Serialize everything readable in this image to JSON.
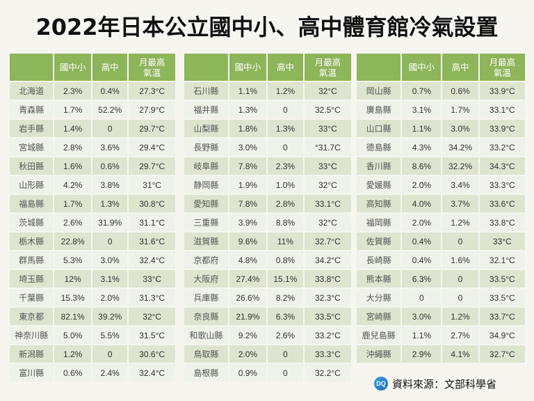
{
  "title": "2022年日本公立國中小、高中體育館冷氣設置",
  "headers": {
    "blank": "",
    "junior": "國中小",
    "high": "高中",
    "temp_line1": "月最高",
    "temp_line2": "氣溫"
  },
  "tables": [
    {
      "rows": [
        {
          "pref": "北海道",
          "junior": "2.3%",
          "high": "0.4%",
          "temp": "27.3°C"
        },
        {
          "pref": "青森縣",
          "junior": "1.7%",
          "high": "52.2%",
          "temp": "27.9°C"
        },
        {
          "pref": "岩手縣",
          "junior": "1.4%",
          "high": "0",
          "temp": "29.7°C"
        },
        {
          "pref": "宮城縣",
          "junior": "2.8%",
          "high": "3.6%",
          "temp": "29.4°C"
        },
        {
          "pref": "秋田縣",
          "junior": "1.6%",
          "high": "0.6%",
          "temp": "29.7°C"
        },
        {
          "pref": "山形縣",
          "junior": "4.2%",
          "high": "3.8%",
          "temp": "31°C"
        },
        {
          "pref": "福島縣",
          "junior": "1.7%",
          "high": "1.3%",
          "temp": "30.8°C"
        },
        {
          "pref": "茨城縣",
          "junior": "2.6%",
          "high": "31.9%",
          "temp": "31.1°C"
        },
        {
          "pref": "栃木縣",
          "junior": "22.8%",
          "high": "0",
          "temp": "31.6°C"
        },
        {
          "pref": "群馬縣",
          "junior": "5.3%",
          "high": "3.0%",
          "temp": "32.4°C"
        },
        {
          "pref": "埼玉縣",
          "junior": "12%",
          "high": "3.1%",
          "temp": "33°C"
        },
        {
          "pref": "千葉縣",
          "junior": "15.3%",
          "high": "2.0%",
          "temp": "31.3°C"
        },
        {
          "pref": "東京都",
          "junior": "82.1%",
          "high": "39.2%",
          "temp": "32°C"
        },
        {
          "pref": "神奈川縣",
          "junior": "5.0%",
          "high": "5.5%",
          "temp": "31.5°C"
        },
        {
          "pref": "新潟縣",
          "junior": "1.2%",
          "high": "0",
          "temp": "30.6°C"
        },
        {
          "pref": "富川縣",
          "junior": "0.6%",
          "high": "2.4%",
          "temp": "32.4°C"
        }
      ]
    },
    {
      "rows": [
        {
          "pref": "石川縣",
          "junior": "1.1%",
          "high": "1.2%",
          "temp": "32°C"
        },
        {
          "pref": "福井縣",
          "junior": "1.3%",
          "high": "0",
          "temp": "32.5°C"
        },
        {
          "pref": "山梨縣",
          "junior": "1.8%",
          "high": "1.3%",
          "temp": "33°C"
        },
        {
          "pref": "長野縣",
          "junior": "3.0%",
          "high": "0",
          "temp": "°31.7C"
        },
        {
          "pref": "岐阜縣",
          "junior": "7.8%",
          "high": "2.3%",
          "temp": "33°C"
        },
        {
          "pref": "静岡縣",
          "junior": "1.9%",
          "high": "1.0%",
          "temp": "32°C"
        },
        {
          "pref": "愛知縣",
          "junior": "7.8%",
          "high": "2.8%",
          "temp": "33.1°C"
        },
        {
          "pref": "三重縣",
          "junior": "3.9%",
          "high": "8.8%",
          "temp": "32°C"
        },
        {
          "pref": "滋賀縣",
          "junior": "9.6%",
          "high": "11%",
          "temp": "32.7°C"
        },
        {
          "pref": "京都府",
          "junior": "4.8%",
          "high": "0.8%",
          "temp": "34.2°C"
        },
        {
          "pref": "大阪府",
          "junior": "27.4%",
          "high": "15.1%",
          "temp": "33.8°C"
        },
        {
          "pref": "兵庫縣",
          "junior": "26.6%",
          "high": "8.2%",
          "temp": "32.3°C"
        },
        {
          "pref": "奈良縣",
          "junior": "21.9%",
          "high": "6.3%",
          "temp": "33.5°C"
        },
        {
          "pref": "和歌山縣",
          "junior": "9.2%",
          "high": "2.6%",
          "temp": "33.2°C"
        },
        {
          "pref": "鳥取縣",
          "junior": "2.0%",
          "high": "0",
          "temp": "33.3°C"
        },
        {
          "pref": "島根縣",
          "junior": "0.9%",
          "high": "0",
          "temp": "32.2°C"
        }
      ]
    },
    {
      "rows": [
        {
          "pref": "岡山縣",
          "junior": "0.7%",
          "high": "0.6%",
          "temp": "33.9°C"
        },
        {
          "pref": "廣島縣",
          "junior": "3.1%",
          "high": "1.7%",
          "temp": "33.1°C"
        },
        {
          "pref": "山口縣",
          "junior": "1.1%",
          "high": "3.0%",
          "temp": "33.9°C"
        },
        {
          "pref": "德島縣",
          "junior": "4.3%",
          "high": "34.2%",
          "temp": "33.2°C"
        },
        {
          "pref": "香川縣",
          "junior": "8.6%",
          "high": "32.2%",
          "temp": "34.3°C"
        },
        {
          "pref": "愛媛縣",
          "junior": "2.0%",
          "high": "3.4%",
          "temp": "33.3°C"
        },
        {
          "pref": "高知縣",
          "junior": "4.0%",
          "high": "3.7%",
          "temp": "33.6°C"
        },
        {
          "pref": "福岡縣",
          "junior": "2.0%",
          "high": "1.2%",
          "temp": "33.8°C"
        },
        {
          "pref": "佐賀縣",
          "junior": "0.4%",
          "high": "0",
          "temp": "33°C"
        },
        {
          "pref": "長崎縣",
          "junior": "0.4%",
          "high": "1.6%",
          "temp": "32.1°C"
        },
        {
          "pref": "熊本縣",
          "junior": "6.3%",
          "high": "0",
          "temp": "33.5°C"
        },
        {
          "pref": "大分縣",
          "junior": "0",
          "high": "0",
          "temp": "33.5°C"
        },
        {
          "pref": "宮崎縣",
          "junior": "3.0%",
          "high": "1.2%",
          "temp": "33.7°C"
        },
        {
          "pref": "鹿兒島縣",
          "junior": "1.1%",
          "high": "2.7%",
          "temp": "34.9°C"
        },
        {
          "pref": "沖繩縣",
          "junior": "2.9%",
          "high": "4.1%",
          "temp": "32.7°C"
        }
      ]
    }
  ],
  "source": {
    "logo_text": "DQ",
    "label": "資料來源：文部科學省"
  },
  "colors": {
    "header_bg": "#8db55a",
    "row_odd": "#dde5cf",
    "row_even": "#eef2e8",
    "page_bg": "#f7f5f0"
  }
}
